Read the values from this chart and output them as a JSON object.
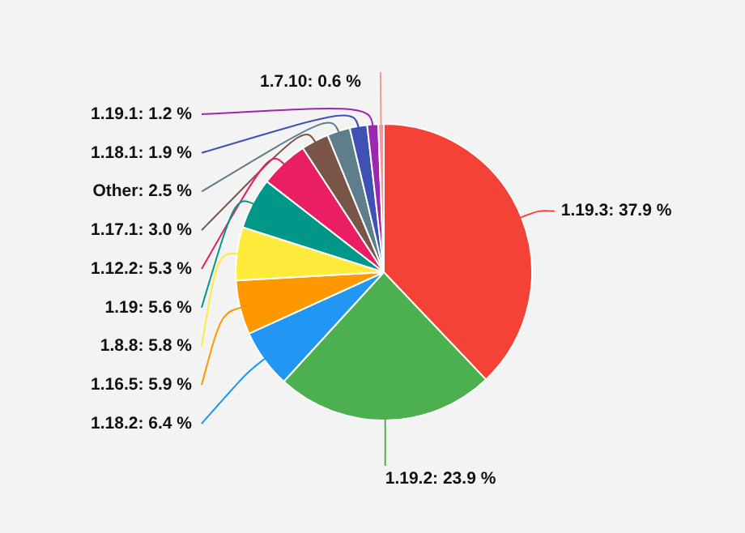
{
  "chart_data": {
    "type": "pie",
    "categories": [
      "1.19.3",
      "1.19.2",
      "1.18.2",
      "1.16.5",
      "1.8.8",
      "1.19",
      "1.12.2",
      "1.17.1",
      "Other",
      "1.18.1",
      "1.19.1",
      "1.7.10"
    ],
    "values": [
      37.9,
      23.9,
      6.4,
      5.9,
      5.8,
      5.6,
      5.3,
      3.0,
      2.5,
      1.9,
      1.2,
      0.6
    ],
    "colors": [
      "#f44336",
      "#4caf50",
      "#2196f3",
      "#ff9800",
      "#ffeb3b",
      "#009688",
      "#e91e63",
      "#795548",
      "#607d8b",
      "#3f51b5",
      "#9c27b0",
      "#ef9a9a"
    ],
    "value_labels": [
      "37.9 %",
      "23.9 %",
      "6.4 %",
      "5.9 %",
      "5.8 %",
      "5.6 %",
      "5.3 %",
      "3.0 %",
      "2.5 %",
      "1.9 %",
      "1.2 %",
      "0.6 %"
    ]
  }
}
